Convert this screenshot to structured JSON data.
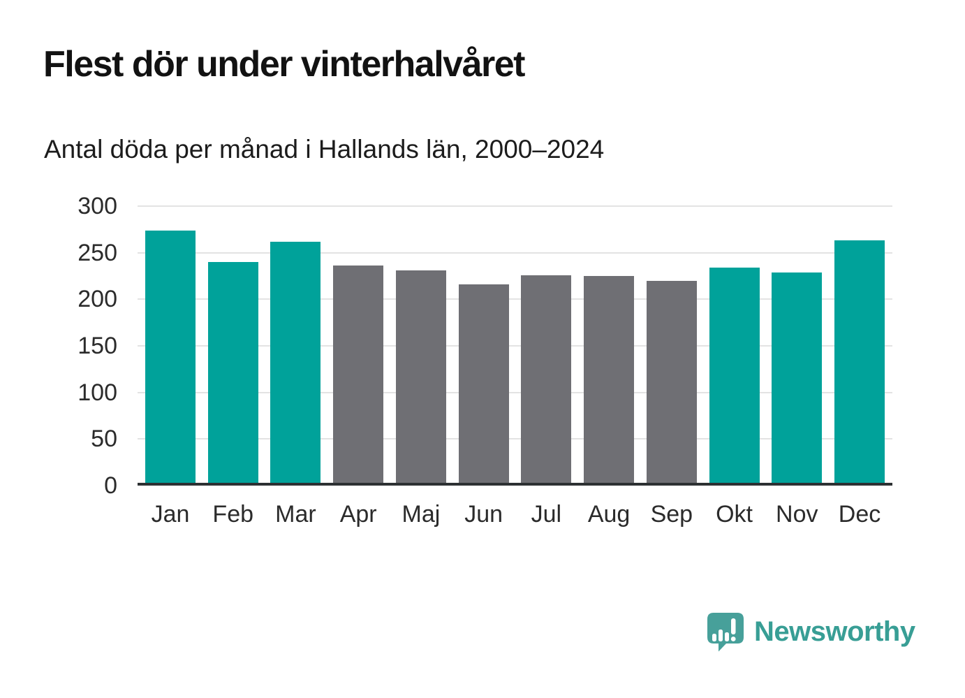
{
  "header": {
    "title": "Flest dör under vinterhalvåret",
    "subtitle": "Antal döda per månad i Hallands län, 2000–2024"
  },
  "chart_data": {
    "type": "bar",
    "title": "Flest dör under vinterhalvåret",
    "subtitle": "Antal döda per månad i Hallands län, 2000–2024",
    "categories": [
      "Jan",
      "Feb",
      "Mar",
      "Apr",
      "Maj",
      "Jun",
      "Jul",
      "Aug",
      "Sep",
      "Okt",
      "Nov",
      "Dec"
    ],
    "values": [
      274,
      240,
      262,
      236,
      231,
      216,
      226,
      225,
      220,
      234,
      229,
      263
    ],
    "bar_colors": [
      "teal",
      "teal",
      "teal",
      "gray",
      "gray",
      "gray",
      "gray",
      "gray",
      "gray",
      "teal",
      "teal",
      "teal"
    ],
    "palette": {
      "teal": "#00a29a",
      "gray": "#6f6f74"
    },
    "ylim": [
      0,
      300
    ],
    "yticks": [
      0,
      50,
      100,
      150,
      200,
      250,
      300
    ],
    "xlabel": "",
    "ylabel": "",
    "grid": "horizontal",
    "legend": "none"
  },
  "footer": {
    "brand": "Newsworthy",
    "logo_color": "#47a09a",
    "text_color": "#389e95"
  }
}
